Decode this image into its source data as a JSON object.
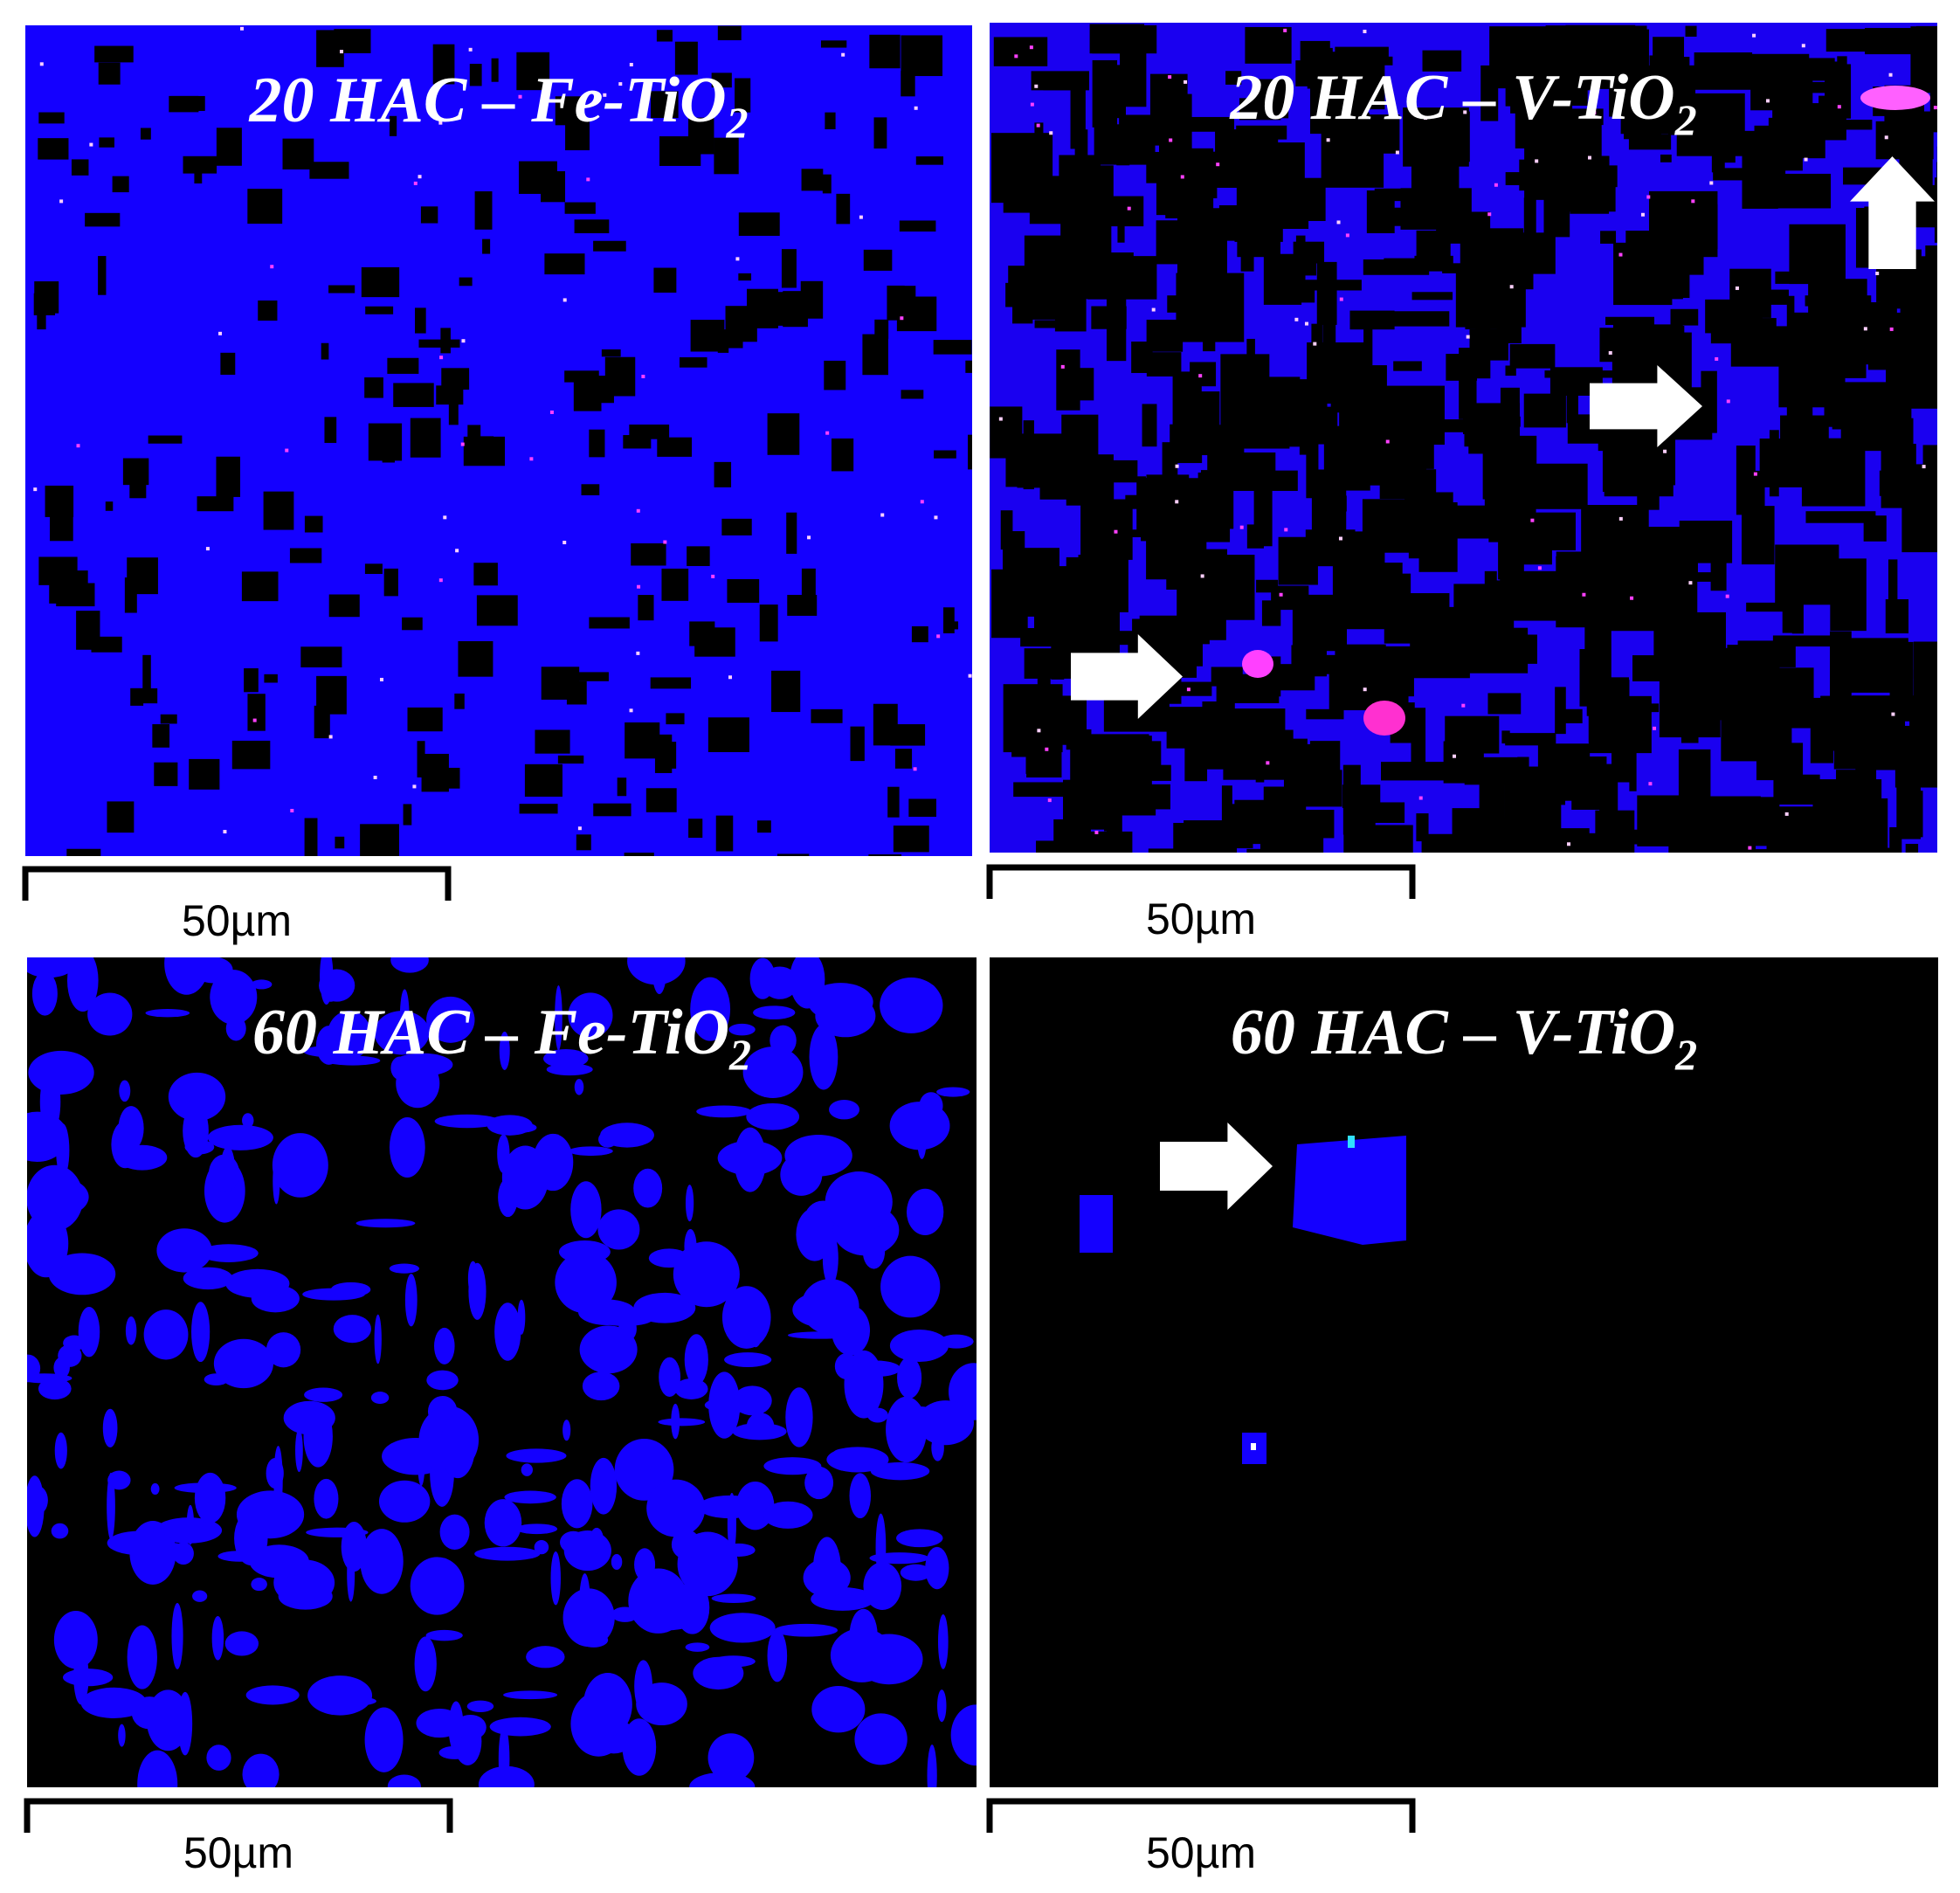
{
  "panels": [
    {
      "title": "20 HAC – Fe-TiO",
      "subscript": "2",
      "scale_label": "50µm"
    },
    {
      "title": "20 HAC – V-TiO",
      "subscript": "2",
      "scale_label": "50µm"
    },
    {
      "title": "60 HAC – Fe-TiO",
      "subscript": "2",
      "scale_label": "50µm"
    },
    {
      "title": "60 HAC – V-TiO",
      "subscript": "2",
      "scale_label": "50µm"
    }
  ]
}
